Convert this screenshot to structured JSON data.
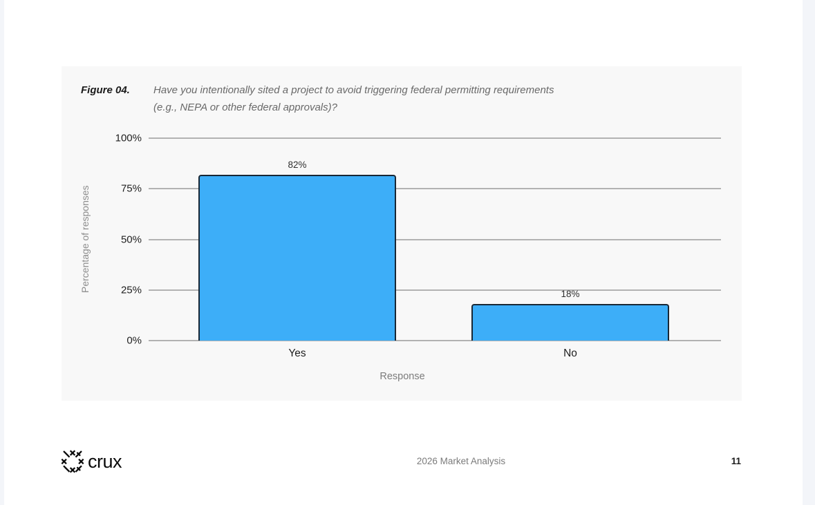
{
  "figure": {
    "label": "Figure 04.",
    "question_lines": [
      "Have you intentionally sited a project to avoid triggering federal permitting requirements",
      "(e.g., NEPA or other federal approvals)?"
    ]
  },
  "chart_data": {
    "type": "bar",
    "title": "Have you intentionally sited a project to avoid triggering federal permitting requirements (e.g., NEPA or other federal approvals)?",
    "figure_label": "Figure 04.",
    "categories": [
      "Yes",
      "No"
    ],
    "values": [
      82,
      18
    ],
    "value_labels": [
      "82%",
      "18%"
    ],
    "xlabel": "Response",
    "ylabel": "Percentage of responses",
    "ylim": [
      0,
      100
    ],
    "yticks": [
      0,
      25,
      50,
      75,
      100
    ],
    "ytick_labels": [
      "0%",
      "25%",
      "50%",
      "75%",
      "100%"
    ],
    "grid": true,
    "legend": "none",
    "bar_color": "#3daef8",
    "bar_border_color": "#182735",
    "background_color": "#f8f8f8"
  },
  "footer": {
    "brand": "crux",
    "center_text": "2026 Market Analysis",
    "page_number": "11"
  }
}
